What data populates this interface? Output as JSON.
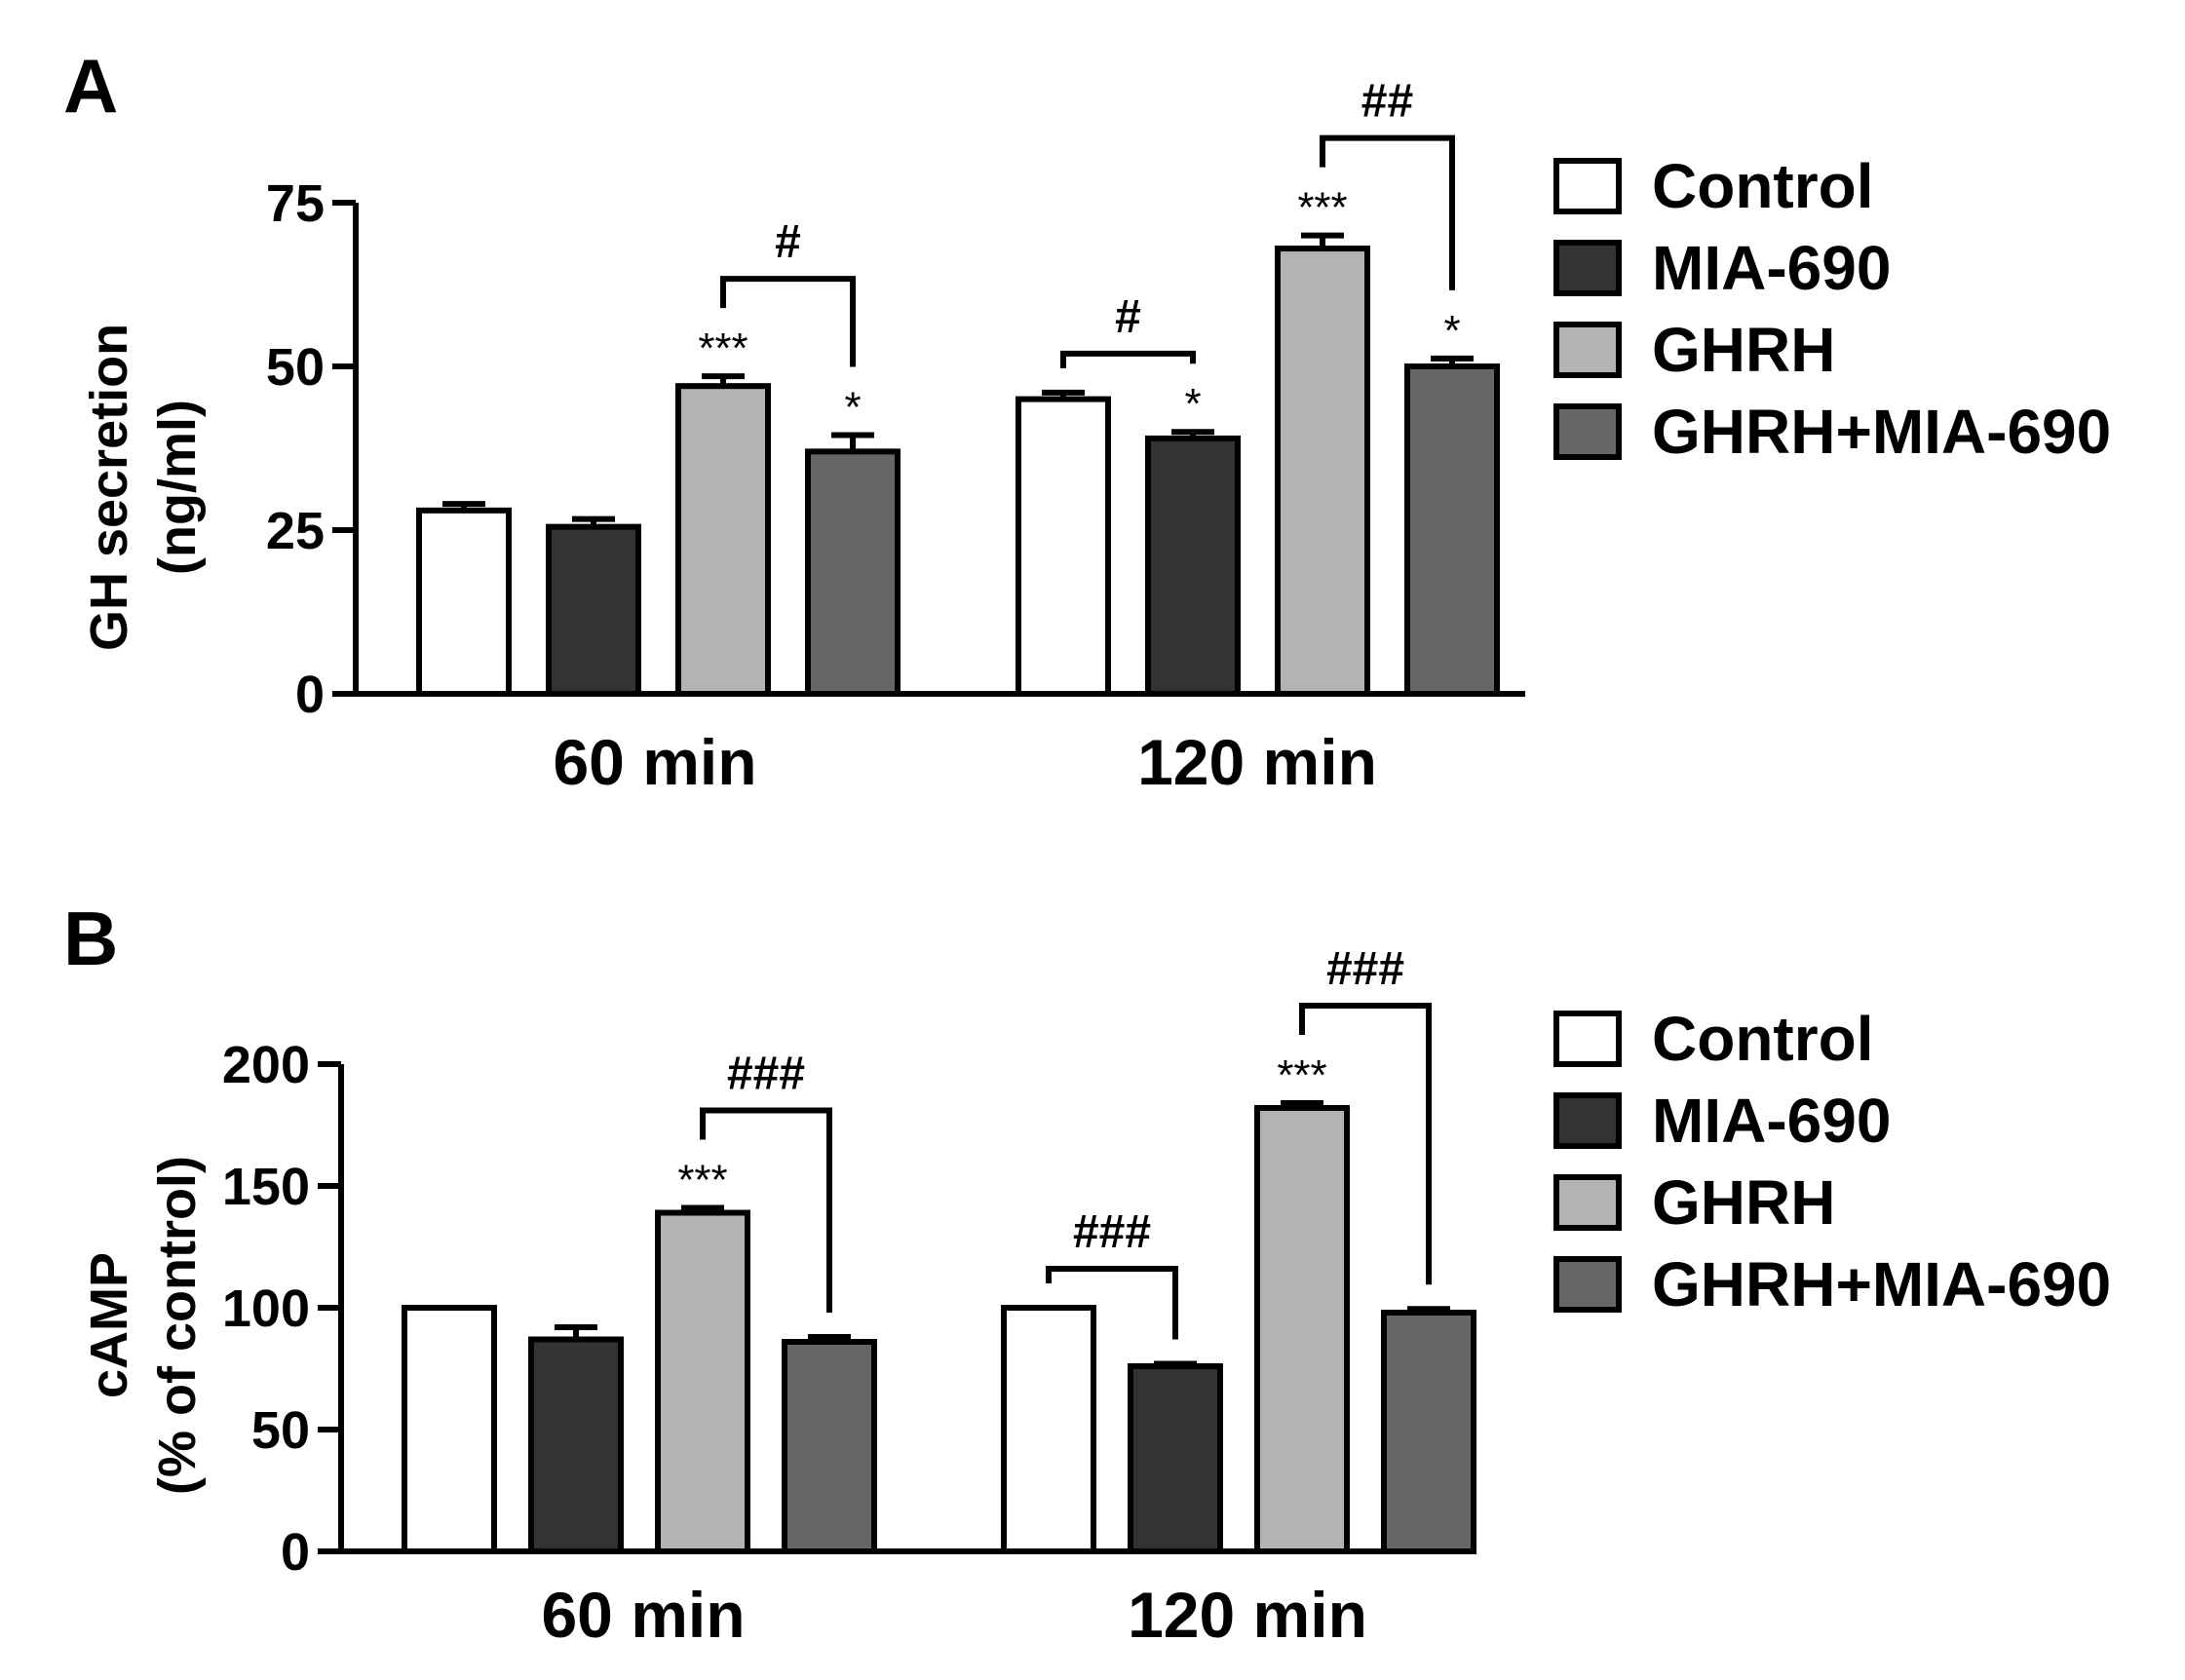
{
  "chart_data": [
    {
      "type": "bar",
      "panel": "A",
      "ylabel_line1": "GH secretion",
      "ylabel_line2": "(ng/ml)",
      "ylim": [
        0,
        75
      ],
      "yticks": [
        0,
        25,
        50,
        75
      ],
      "categories": [
        "60 min",
        "120 min"
      ],
      "series": [
        {
          "name": "Control",
          "color": "#ffffff",
          "values": [
            28,
            45
          ],
          "errors": [
            1,
            1
          ],
          "sig": [
            "",
            ""
          ]
        },
        {
          "name": "MIA-690",
          "color": "#333333",
          "values": [
            25.5,
            39
          ],
          "errors": [
            1.2,
            1
          ],
          "sig": [
            "",
            "*"
          ]
        },
        {
          "name": "GHRH",
          "color": "#b3b3b3",
          "values": [
            47,
            68
          ],
          "errors": [
            1.5,
            2
          ],
          "sig": [
            "***",
            "***"
          ]
        },
        {
          "name": "GHRH+MIA-690",
          "color": "#666666",
          "values": [
            37,
            50
          ],
          "errors": [
            2.5,
            1.2
          ],
          "sig": [
            "*",
            "*"
          ]
        }
      ],
      "brackets": [
        {
          "group": 0,
          "from": 2,
          "to": 3,
          "label": "#"
        },
        {
          "group": 1,
          "from": 0,
          "to": 1,
          "label": "#"
        },
        {
          "group": 1,
          "from": 2,
          "to": 3,
          "label": "##"
        }
      ],
      "legend": [
        "Control",
        "MIA-690",
        "GHRH",
        "GHRH+MIA-690"
      ]
    },
    {
      "type": "bar",
      "panel": "B",
      "ylabel_line1": "cAMP",
      "ylabel_line2": "(% of control)",
      "ylim": [
        0,
        200
      ],
      "yticks": [
        0,
        50,
        100,
        150,
        200
      ],
      "categories": [
        "60 min",
        "120 min"
      ],
      "series": [
        {
          "name": "Control",
          "color": "#ffffff",
          "values": [
            100,
            100
          ],
          "errors": [
            0,
            0
          ],
          "sig": [
            "",
            ""
          ]
        },
        {
          "name": "MIA-690",
          "color": "#333333",
          "values": [
            87,
            76
          ],
          "errors": [
            5,
            1
          ],
          "sig": [
            "",
            ""
          ]
        },
        {
          "name": "GHRH",
          "color": "#b3b3b3",
          "values": [
            139,
            182
          ],
          "errors": [
            2,
            2
          ],
          "sig": [
            "***",
            "***"
          ]
        },
        {
          "name": "GHRH+MIA-690",
          "color": "#666666",
          "values": [
            86,
            98
          ],
          "errors": [
            2,
            1.5
          ],
          "sig": [
            "",
            ""
          ]
        }
      ],
      "brackets": [
        {
          "group": 0,
          "from": 2,
          "to": 3,
          "label": "###"
        },
        {
          "group": 1,
          "from": 0,
          "to": 1,
          "label": "###"
        },
        {
          "group": 1,
          "from": 2,
          "to": 3,
          "label": "###"
        }
      ],
      "legend": [
        "Control",
        "MIA-690",
        "GHRH",
        "GHRH+MIA-690"
      ]
    }
  ]
}
